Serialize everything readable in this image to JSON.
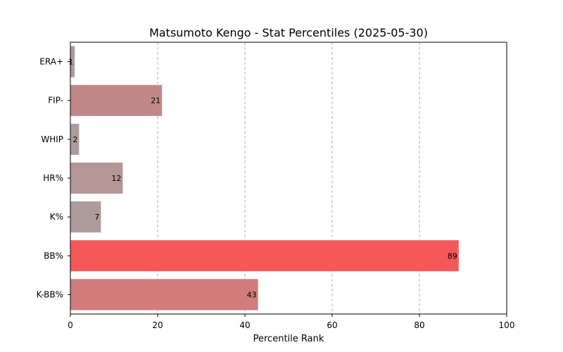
{
  "chart_data": {
    "type": "bar",
    "orientation": "horizontal",
    "title": "Matsumoto Kengo - Stat Percentiles (2025-05-30)",
    "xlabel": "Percentile Rank",
    "ylabel": "",
    "xlim": [
      0,
      100
    ],
    "x_ticks": [
      0,
      20,
      40,
      60,
      80,
      100
    ],
    "grid": "x-dashed",
    "categories": [
      "ERA+",
      "FIP-",
      "WHIP",
      "HR%",
      "K%",
      "BB%",
      "K-BB%"
    ],
    "values": [
      1,
      21,
      2,
      12,
      7,
      89,
      43
    ],
    "colors": [
      "#ae9c9c",
      "#c08888",
      "#ae9c9c",
      "#b49696",
      "#ae9c9c",
      "#f55858",
      "#d17b7b"
    ]
  }
}
